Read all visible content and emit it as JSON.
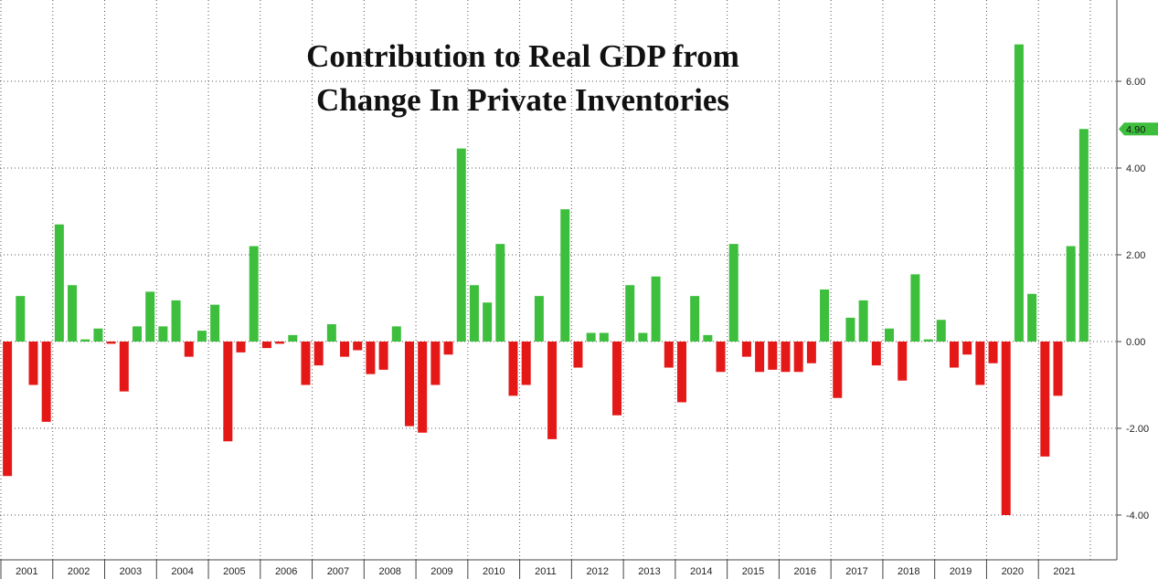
{
  "chart_data": {
    "type": "bar",
    "title_lines": [
      "Contribution to Real GDP from",
      "Change In Private Inventories"
    ],
    "xlabel": "",
    "ylabel": "",
    "ylim": [
      -5,
      7.7
    ],
    "y_ticks": [
      6,
      4,
      2,
      0,
      -2,
      -4
    ],
    "y_tick_labels": [
      "6.00",
      "4.00",
      "2.00",
      "0.00",
      "-2.00",
      "-4.00"
    ],
    "grid": true,
    "y_axis_position": "right",
    "positive_color": "#3dbf3d",
    "negative_color": "#e51818",
    "last_value_label": "4.90",
    "years": [
      "2001",
      "2002",
      "2003",
      "2004",
      "2005",
      "2006",
      "2007",
      "2008",
      "2009",
      "2010",
      "2011",
      "2012",
      "2013",
      "2014",
      "2015",
      "2016",
      "2017",
      "2018",
      "2019",
      "2020",
      "2021"
    ],
    "values": [
      -3.1,
      1.05,
      -1.0,
      -1.85,
      2.7,
      1.3,
      0.05,
      0.3,
      -0.05,
      -1.15,
      0.35,
      1.15,
      0.35,
      0.95,
      -0.35,
      0.25,
      0.85,
      -2.3,
      -0.25,
      2.2,
      -0.15,
      -0.05,
      0.15,
      -1.0,
      -0.55,
      0.4,
      -0.35,
      -0.2,
      -0.75,
      -0.65,
      0.35,
      -1.95,
      -2.1,
      -1.0,
      -0.3,
      4.45,
      1.3,
      0.9,
      2.25,
      -1.25,
      -1.0,
      1.05,
      -2.25,
      3.05,
      -0.6,
      0.2,
      0.2,
      -1.7,
      1.3,
      0.2,
      1.5,
      -0.6,
      -1.4,
      1.05,
      0.15,
      -0.7,
      2.25,
      -0.35,
      -0.7,
      -0.65,
      -0.7,
      -0.7,
      -0.5,
      1.2,
      -1.3,
      0.55,
      0.95,
      -0.55,
      0.3,
      -0.9,
      1.55,
      0.05,
      0.5,
      -0.6,
      -0.3,
      -1.0,
      -0.5,
      -4.0,
      6.85,
      1.1,
      -2.65,
      -1.25,
      2.2,
      4.9
    ]
  }
}
